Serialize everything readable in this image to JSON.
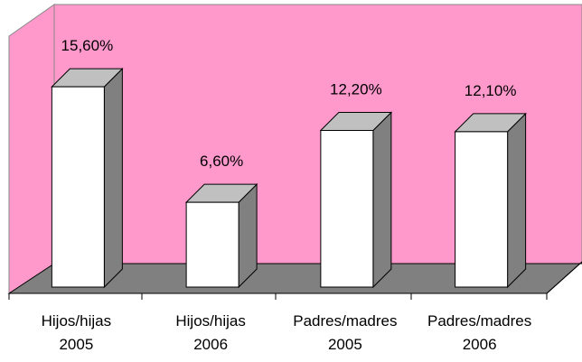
{
  "chart_data": {
    "type": "bar3d",
    "categories": [
      [
        "Hijos/hijas",
        "2005"
      ],
      [
        "Hijos/hijas",
        "2006"
      ],
      [
        "Padres/madres",
        "2005"
      ],
      [
        "Padres/madres",
        "2006"
      ]
    ],
    "values": [
      15.6,
      6.6,
      12.2,
      12.1
    ],
    "value_labels": [
      "15,60%",
      "6,60%",
      "12,20%",
      "12,10%"
    ],
    "color": "#ffffff",
    "ylim": [
      0,
      18
    ]
  }
}
